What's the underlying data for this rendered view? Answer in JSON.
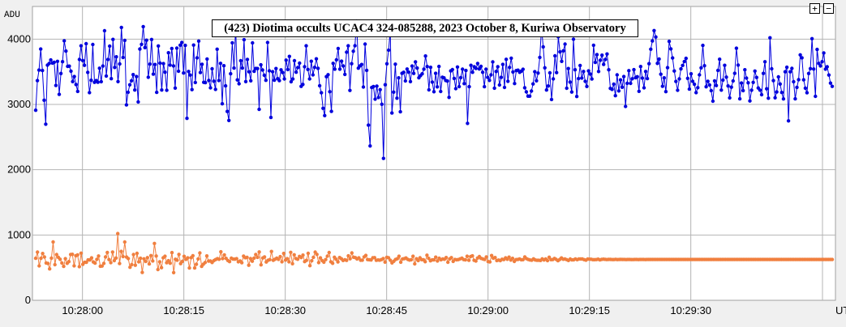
{
  "controls": {
    "zoom_in_label": "+",
    "zoom_out_label": "−"
  },
  "chart_data": {
    "type": "line",
    "title": "(423) Diotima occults UCAC4 324-085288, 2023 October 8, Kuriwa Observatory",
    "ylabel": "ADU",
    "xlabel": "UT",
    "ylim": [
      0,
      4500
    ],
    "yticks": [
      0,
      1000,
      2000,
      3000,
      4000
    ],
    "xticks": [
      "10:28:00",
      "10:28:15",
      "10:28:30",
      "10:28:45",
      "10:29:00",
      "10:29:15",
      "10:29:30"
    ],
    "x_start": "10:27:52.6",
    "x_end": "10:29:51.4",
    "grid": true,
    "series": [
      {
        "color": "#0000dd",
        "values": [
          2911,
          3364,
          3526,
          3848,
          3519,
          3064,
          2698,
          3601,
          3627,
          3680,
          3634,
          3646,
          3290,
          3660,
          3154,
          3473,
          3654,
          3974,
          3817,
          3583,
          3586,
          3509,
          3349,
          3427,
          3305,
          3200,
          3688,
          3898,
          3672,
          3599,
          3930,
          3491,
          3181,
          3369,
          3917,
          3339,
          3364,
          3340,
          3554,
          3348,
          3588,
          4128,
          3435,
          3688,
          3893,
          3394,
          3996,
          3566,
          3729,
          3350,
          3620,
          4179,
          3719,
          3981,
          2992,
          3186,
          3300,
          3362,
          3456,
          3221,
          3427,
          3038,
          3848,
          3920,
          4191,
          3870,
          3983,
          3416,
          3617,
          3994,
          3464,
          3611,
          3185,
          3895,
          3632,
          3221,
          3625,
          3494,
          3217,
          3791,
          3603,
          3856,
          3590,
          3250,
          3862,
          3508,
          3907,
          3949,
          3481,
          3904,
          2787,
          3504,
          3450,
          3227,
          3909,
          3336,
          3713,
          3970,
          3489,
          3615,
          3339,
          3334,
          3695,
          3367,
          3254,
          3545,
          3356,
          3231,
          3845,
          3366,
          3629,
          3010,
          3593,
          3284,
          2892,
          2755,
          3470,
          3944,
          3556,
          4187,
          3376,
          3316,
          3669,
          3556,
          3990,
          3350,
          3689,
          3500,
          3362,
          3942,
          3507,
          3550,
          3549,
          2924,
          3606,
          3527,
          3446,
          3369,
          3948,
          3514,
          2800,
          3501,
          3371,
          3549,
          3394,
          3365,
          3529,
          3489,
          3391,
          3678,
          3534,
          3735,
          3347,
          3389,
          3670,
          3493,
          3564,
          3632,
          3276,
          3306,
          3578,
          3897,
          3535,
          3391,
          3661,
          3453,
          3568,
          3698,
          3553,
          3286,
          3178,
          2940,
          2829,
          3425,
          3455,
          3195,
          2894,
          3629,
          3539,
          3683,
          3857,
          3541,
          3662,
          3589,
          3460,
          3799,
          3898,
          3215,
          3624,
          3815,
          3899,
          4276,
          3555,
          3590,
          3611,
          3266,
          3923,
          3522,
          2683,
          2364,
          3259,
          3274,
          3081,
          3280,
          3106,
          3226,
          3002,
          2173,
          3301,
          3622,
          3831,
          4128,
          2869,
          3188,
          3616,
          3096,
          3406,
          2887,
          3476,
          3492,
          3360,
          3542,
          3494,
          3349,
          3588,
          3475,
          3652,
          3557,
          3408,
          3440,
          3469,
          3541,
          3741,
          3580,
          3223,
          3568,
          3342,
          3195,
          3476,
          3269,
          3582,
          3198,
          3417,
          3407,
          3367,
          3358,
          3108,
          3513,
          3533,
          3398,
          3242,
          3573,
          3273,
          3410,
          3539,
          3319,
          3519,
          2710,
          3271,
          3599,
          3492,
          3578,
          3551,
          3627,
          3543,
          3583,
          3492,
          3271,
          3539,
          3414,
          3368,
          3452,
          3651,
          3249,
          3505,
          3578,
          3297,
          3414,
          3612,
          3260,
          3691,
          3355,
          3566,
          3708,
          3497,
          3320,
          3518,
          3524,
          3492,
          3510,
          3538,
          3255,
          3192,
          3126,
          3126,
          3205,
          3314,
          3501,
          3362,
          3480,
          3720,
          4179,
          3881,
          3560,
          3221,
          3283,
          3483,
          3075,
          3391,
          3744,
          3487,
          4035,
          3805,
          3659,
          3821,
          3923,
          3248,
          3549,
          3342,
          3190,
          3998,
          3530,
          3121,
          3395,
          3596,
          3404,
          3504,
          3355,
          3275,
          3513,
          3466,
          3389,
          3906,
          3643,
          3763,
          3505,
          3677,
          3754,
          3612,
          3688,
          3772,
          3530,
          3246,
          3231,
          3310,
          3134,
          3452,
          3207,
          3376,
          3263,
          3426,
          2969,
          3323,
          3517,
          3322,
          3393,
          3532,
          3409,
          3424,
          3201,
          3580,
          3403,
          3254,
          3505,
          3396,
          3623,
          3845,
          3972,
          4131,
          4033,
          3628,
          3695,
          3462,
          3278,
          3406,
          3196,
          3563,
          3966,
          3851,
          3712,
          3512,
          3352,
          3217,
          3391,
          3544,
          3597,
          3656,
          3705,
          3399,
          3234,
          3469,
          3353,
          3309,
          3181,
          3256,
          3453,
          3560,
          3904,
          3593,
          3270,
          3355,
          3298,
          3211,
          3049,
          3361,
          3289,
          3521,
          3692,
          3220,
          3373,
          3599,
          3418,
          3283,
          3101,
          3264,
          3359,
          3476,
          3860,
          3603,
          3085,
          3327,
          3211,
          3530,
          3403,
          3331,
          3053,
          3218,
          3337,
          3511,
          3413,
          3252,
          3219,
          3149,
          3475,
          3653,
          3239,
          3096,
          4020,
          3546,
          3364,
          3102,
          3191,
          3421,
          3313,
          3184,
          3084,
          3500,
          3569,
          2748,
          3500,
          3552,
          3347,
          3085,
          3261,
          3379,
          3759,
          3714,
          3377,
          3249,
          3179,
          3473,
          3548,
          4007,
          3542,
          3124,
          3842,
          3629,
          3589,
          3655,
          3788,
          3541,
          3577,
          3450,
          3326,
          3276
        ]
      },
      {
        "color": "#f07f3f",
        "values": [
          644,
          737,
          527,
          644,
          716,
          663,
          572,
          564,
          481,
          646,
          894,
          545,
          701,
          657,
          628,
          571,
          520,
          637,
          567,
          592,
          702,
          704,
          528,
          683,
          695,
          516,
          721,
          550,
          581,
          582,
          619,
          617,
          650,
          586,
          569,
          627,
          678,
          522,
          524,
          565,
          665,
          733,
          623,
          577,
          739,
          607,
          647,
          1021,
          563,
          749,
          669,
          893,
          662,
          640,
          506,
          547,
          701,
          537,
          719,
          589,
          644,
          426,
          635,
          595,
          653,
          556,
          684,
          603,
          870,
          678,
          471,
          590,
          499,
          651,
          675,
          575,
          606,
          568,
          730,
          424,
          628,
          614,
          703,
          561,
          596,
          673,
          627,
          650,
          495,
          653,
          683,
          495,
          552,
          633,
          725,
          520,
          553,
          579,
          679,
          600,
          601,
          579,
          608,
          624,
          637,
          628,
          743,
          639,
          696,
          642,
          610,
          593,
          645,
          631,
          630,
          637,
          590,
          602,
          575,
          677,
          652,
          657,
          537,
          639,
          599,
          646,
          702,
          658,
          740,
          543,
          648,
          664,
          586,
          613,
          622,
          748,
          612,
          629,
          646,
          627,
          668,
          590,
          718,
          616,
          637,
          589,
          734,
          560,
          697,
          640,
          629,
          672,
          655,
          692,
          592,
          611,
          719,
          531,
          605,
          658,
          737,
          703,
          578,
          650,
          608,
          584,
          623,
          676,
          732,
          590,
          566,
          659,
          629,
          588,
          655,
          636,
          610,
          621,
          611,
          680,
          636,
          725,
          660,
          653,
          633,
          649,
          614,
          615,
          664,
          687,
          623,
          621,
          617,
          651,
          653,
          613,
          617,
          615,
          623,
          640,
          585,
          658,
          652,
          614,
          573,
          597,
          625,
          636,
          675,
          584,
          632,
          637,
          648,
          626,
          616,
          621,
          674,
          558,
          636,
          609,
          651,
          622,
          621,
          591,
          690,
          642,
          605,
          619,
          619,
          661,
          603,
          643,
          621,
          632,
          628,
          655,
          583,
          633,
          653,
          596,
          625,
          620,
          624,
          635,
          646,
          623,
          618,
          675,
          612,
          669,
          681,
          612,
          601,
          647,
          670,
          642,
          632,
          625,
          664,
          593,
          587,
          686,
          645,
          654,
          609,
          616,
          608,
          629,
          624,
          650,
          629,
          661,
          616,
          642,
          595,
          623,
          625,
          634,
          621,
          622,
          664,
          637,
          625,
          617,
          614,
          635,
          617,
          612,
          613,
          610,
          635,
          617,
          633,
          607,
          659,
          622,
          624,
          641,
          626,
          606,
          625,
          648,
          628,
          632,
          622,
          610,
          632,
          619,
          620,
          633,
          622,
          632,
          633,
          632,
          622,
          615,
          631,
          630,
          628,
          622,
          622,
          623,
          630,
          618,
          626,
          630,
          627,
          624,
          626,
          626,
          624,
          624,
          627,
          624,
          625,
          626,
          625,
          625,
          624,
          625,
          625,
          624,
          624,
          625,
          625,
          624,
          625,
          625,
          625,
          624,
          625,
          625,
          625,
          625,
          625,
          625,
          625,
          625,
          625,
          625,
          625,
          625,
          625,
          625,
          625,
          625,
          625,
          625,
          625,
          625,
          625,
          625,
          625,
          625,
          625,
          625,
          625,
          625,
          625,
          625,
          625,
          625,
          625,
          625,
          625,
          625,
          625,
          625,
          625,
          625,
          625,
          625,
          625,
          625,
          625,
          625,
          625,
          625,
          625,
          625,
          625,
          625,
          625,
          625,
          625,
          625,
          625,
          625,
          625,
          625,
          625,
          625,
          625,
          625,
          625,
          625,
          625,
          625,
          625,
          625,
          625,
          625,
          625,
          625,
          625,
          625,
          625,
          625,
          625,
          625,
          625,
          625,
          625,
          625,
          625,
          625,
          625,
          625,
          625,
          625,
          625,
          625,
          625,
          625,
          625,
          625,
          625,
          625,
          625,
          625,
          625,
          625,
          625,
          625,
          625,
          625,
          625
        ]
      }
    ]
  }
}
